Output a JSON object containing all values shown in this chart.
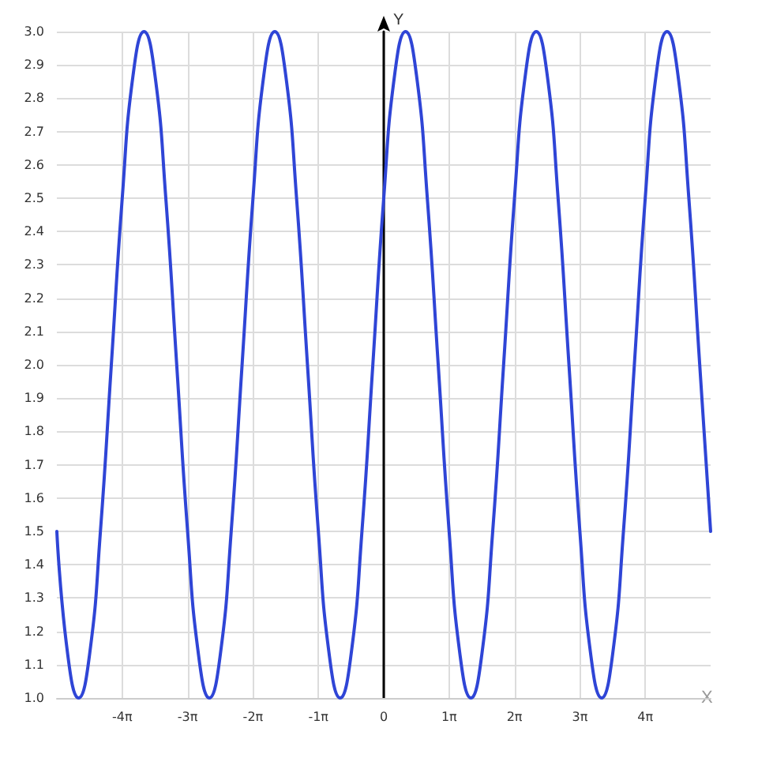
{
  "chart_data": {
    "type": "line",
    "xlabel": "X",
    "ylabel": "Y",
    "x": [
      -15.708,
      -15.184,
      -14.661,
      -14.137,
      -13.614,
      -13.09,
      -12.566,
      -12.043,
      -11.519,
      -10.996,
      -10.472,
      -9.948,
      -9.425,
      -8.901,
      -8.378,
      -7.854,
      -7.33,
      -6.807,
      -6.283,
      -5.76,
      -5.236,
      -4.712,
      -4.189,
      -3.665,
      -3.142,
      -2.618,
      -2.094,
      -1.571,
      -1.047,
      -0.524,
      0,
      0.524,
      1.047,
      1.571,
      2.094,
      2.618,
      3.142,
      3.665,
      4.189,
      4.712,
      5.236,
      5.76,
      6.283,
      6.807,
      7.33,
      7.854,
      8.378,
      8.901,
      9.425,
      9.948,
      10.472,
      10.996,
      11.519,
      12.043,
      12.566,
      13.09,
      13.614,
      14.137,
      14.661,
      15.184,
      15.708
    ],
    "series": [
      {
        "color": "#2f45d6",
        "values": [
          1.5,
          1.13,
          1,
          1.13,
          1.5,
          2,
          2.5,
          2.87,
          3,
          2.87,
          2.5,
          2,
          1.5,
          1.13,
          1,
          1.13,
          1.5,
          2,
          2.5,
          2.87,
          3,
          2.87,
          2.5,
          2,
          1.5,
          1.13,
          1,
          1.13,
          1.5,
          2,
          2.5,
          2.87,
          3,
          2.87,
          2.5,
          2,
          1.5,
          1.13,
          1,
          1.13,
          1.5,
          2,
          2.5,
          2.87,
          3,
          2.87,
          2.5,
          2,
          1.5,
          1.13,
          1,
          1.13,
          1.5,
          2,
          2.5,
          2.87,
          3,
          2.87,
          2.5,
          2,
          1.5
        ]
      }
    ],
    "xlim": [
      -15.708,
      15.708
    ],
    "xticks": [
      {
        "value": -12.566,
        "label": "-4π"
      },
      {
        "value": -9.425,
        "label": "-3π"
      },
      {
        "value": -6.283,
        "label": "-2π"
      },
      {
        "value": -3.142,
        "label": "-1π"
      },
      0,
      {
        "value": 3.142,
        "label": "1π"
      },
      {
        "value": 6.283,
        "label": "2π"
      },
      {
        "value": 9.425,
        "label": "3π"
      },
      {
        "value": 12.566,
        "label": "4π"
      }
    ],
    "ylim": [
      1,
      3
    ],
    "yticks": [
      {
        "value": 1,
        "label": "1.0"
      },
      1.1,
      1.2,
      1.3,
      1.4,
      1.5,
      1.6,
      1.7,
      1.8,
      1.9,
      {
        "value": 2,
        "label": "2.0"
      },
      2.1,
      2.2,
      2.3,
      2.4,
      2.5,
      2.6,
      2.7,
      2.8,
      2.9,
      {
        "value": 3,
        "label": "3.0"
      }
    ],
    "grid": true,
    "marker": "none",
    "line_style": "solid"
  }
}
